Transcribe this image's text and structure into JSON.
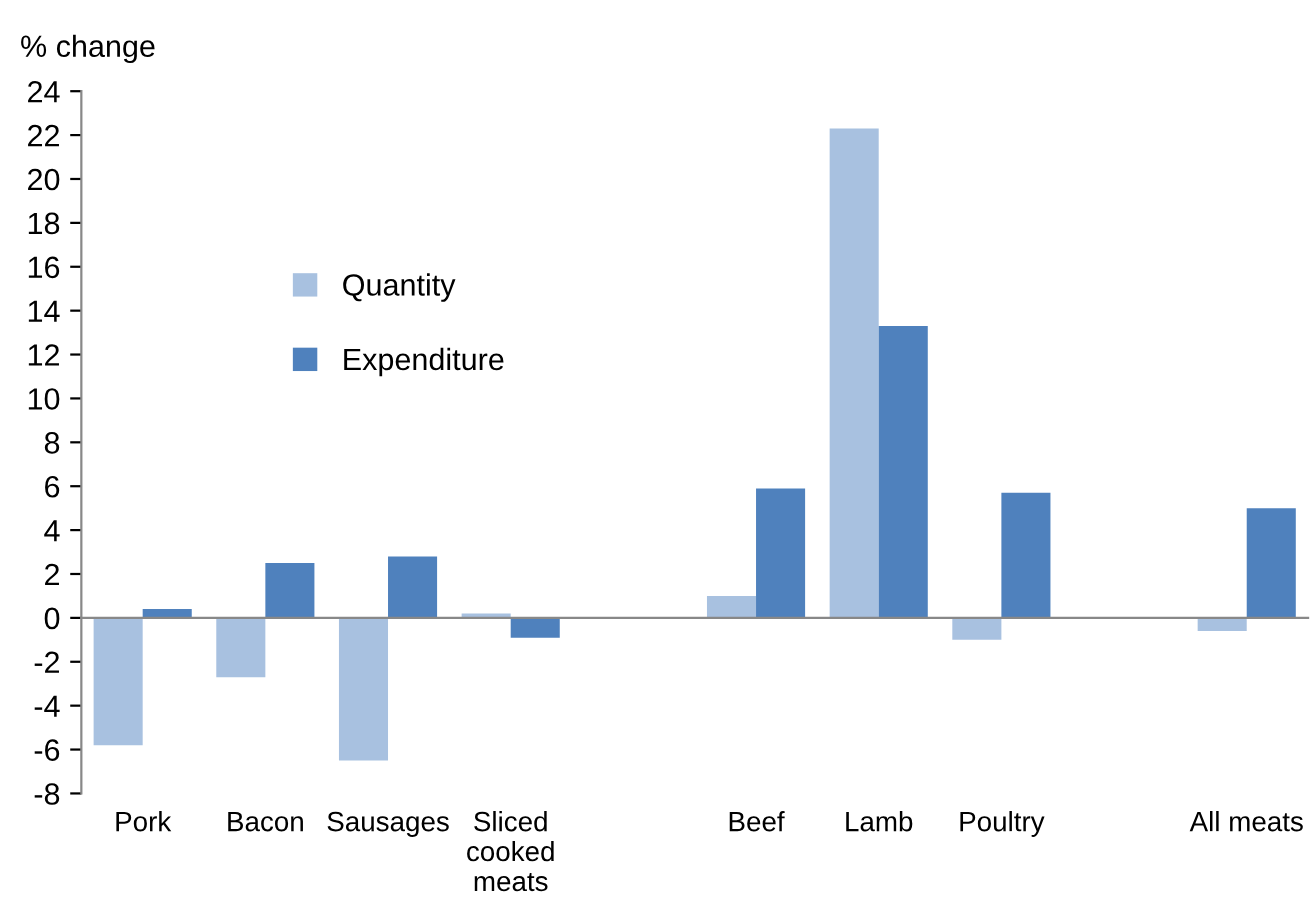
{
  "chart_data": {
    "type": "bar",
    "ylabel": "% change",
    "categories": [
      "Pork",
      "Bacon",
      "Sausages",
      "Sliced cooked meats",
      null,
      "Beef",
      "Lamb",
      "Poultry",
      null,
      "All meats"
    ],
    "series": [
      {
        "name": "Quantity",
        "color": "#a8c1e0",
        "values": [
          -5.8,
          -2.7,
          -6.5,
          0.2,
          null,
          1.0,
          22.3,
          -1.0,
          null,
          -0.6
        ]
      },
      {
        "name": "Expenditure",
        "color": "#4f81bd",
        "values": [
          0.4,
          2.5,
          2.8,
          -0.9,
          null,
          5.9,
          13.3,
          5.7,
          null,
          5.0
        ]
      }
    ],
    "ylim": [
      -8,
      24
    ],
    "yticks": [
      -8,
      -6,
      -4,
      -2,
      0,
      2,
      4,
      6,
      8,
      10,
      12,
      14,
      16,
      18,
      20,
      22,
      24
    ],
    "legend": "top left"
  }
}
